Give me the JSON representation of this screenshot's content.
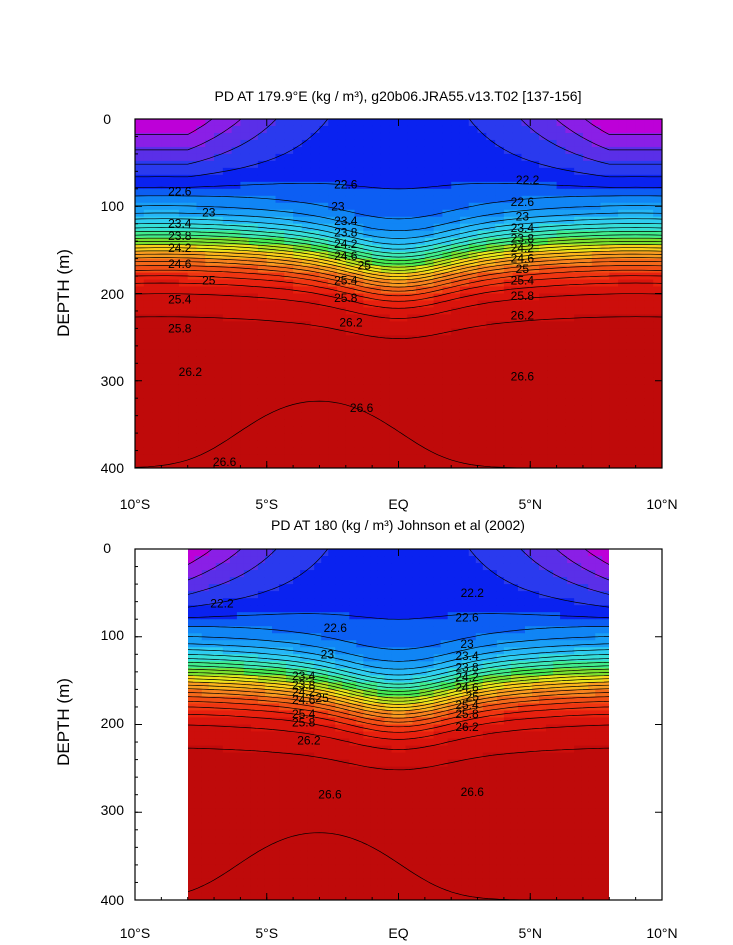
{
  "chart_data": [
    {
      "type": "contour",
      "title": "PD AT 179.9°E (kg / m³), g20b06.JRA55.v13.T02 [137-156]",
      "ylabel": "DEPTH (m)",
      "xlim": [
        -10,
        10
      ],
      "ylim": [
        0,
        400
      ],
      "y_inverted": true,
      "x_ticks": [
        -10,
        -5,
        0,
        5,
        10
      ],
      "x_tick_labels": [
        "10°S",
        "5°S",
        "EQ",
        "5°N",
        "10°N"
      ],
      "y_ticks": [
        0,
        100,
        200,
        300,
        400
      ],
      "y_tick_labels": [
        "0",
        "100",
        "200",
        "300",
        "400"
      ],
      "x_data_range": [
        -10,
        10
      ],
      "contour_levels": [
        21.4,
        21.6,
        21.8,
        22.0,
        22.2,
        22.4,
        22.6,
        22.8,
        23.0,
        23.2,
        23.4,
        23.6,
        23.8,
        24.0,
        24.2,
        24.4,
        24.6,
        24.8,
        25.0,
        25.2,
        25.4,
        25.6,
        25.8,
        26.0,
        26.2,
        26.4,
        26.6,
        26.8
      ],
      "contour_labels": [
        {
          "text": "22.6",
          "x": -8.3,
          "y": 83
        },
        {
          "text": "23",
          "x": -7.2,
          "y": 107
        },
        {
          "text": "23.4",
          "x": -8.3,
          "y": 120
        },
        {
          "text": "23.8",
          "x": -8.3,
          "y": 134
        },
        {
          "text": "24.2",
          "x": -8.3,
          "y": 148
        },
        {
          "text": "24.6",
          "x": -8.3,
          "y": 166
        },
        {
          "text": "25",
          "x": -7.2,
          "y": 185
        },
        {
          "text": "25.4",
          "x": -8.3,
          "y": 207
        },
        {
          "text": "25.8",
          "x": -8.3,
          "y": 240
        },
        {
          "text": "26.2",
          "x": -7.9,
          "y": 290
        },
        {
          "text": "26.6",
          "x": -6.6,
          "y": 393
        },
        {
          "text": "22.6",
          "x": -2.0,
          "y": 75
        },
        {
          "text": "23",
          "x": -2.3,
          "y": 100
        },
        {
          "text": "23.4",
          "x": -2.0,
          "y": 117
        },
        {
          "text": "23.8",
          "x": -2.0,
          "y": 130
        },
        {
          "text": "24.2",
          "x": -2.0,
          "y": 143
        },
        {
          "text": "24.6",
          "x": -2.0,
          "y": 157
        },
        {
          "text": "25",
          "x": -1.3,
          "y": 168
        },
        {
          "text": "25.4",
          "x": -2.0,
          "y": 185
        },
        {
          "text": "25.8",
          "x": -2.0,
          "y": 205
        },
        {
          "text": "26.2",
          "x": -1.8,
          "y": 233
        },
        {
          "text": "26.6",
          "x": -1.4,
          "y": 331
        },
        {
          "text": "22.2",
          "x": 4.9,
          "y": 70
        },
        {
          "text": "22.6",
          "x": 4.7,
          "y": 95
        },
        {
          "text": "23",
          "x": 4.7,
          "y": 112
        },
        {
          "text": "23.4",
          "x": 4.7,
          "y": 125
        },
        {
          "text": "23.8",
          "x": 4.7,
          "y": 137
        },
        {
          "text": "24.2",
          "x": 4.7,
          "y": 148
        },
        {
          "text": "24.6",
          "x": 4.7,
          "y": 160
        },
        {
          "text": "25",
          "x": 4.7,
          "y": 172
        },
        {
          "text": "25.4",
          "x": 4.7,
          "y": 185
        },
        {
          "text": "25.8",
          "x": 4.7,
          "y": 203
        },
        {
          "text": "26.2",
          "x": 4.7,
          "y": 225
        },
        {
          "text": "26.6",
          "x": 4.7,
          "y": 295
        }
      ]
    },
    {
      "type": "contour",
      "title": "PD AT 180 (kg / m³) Johnson et al (2002)",
      "ylabel": "DEPTH (m)",
      "xlim": [
        -10,
        10
      ],
      "ylim": [
        0,
        400
      ],
      "y_inverted": true,
      "x_ticks": [
        -10,
        -5,
        0,
        5,
        10
      ],
      "x_tick_labels": [
        "10°S",
        "5°S",
        "EQ",
        "5°N",
        "10°N"
      ],
      "y_ticks": [
        0,
        100,
        200,
        300,
        400
      ],
      "y_tick_labels": [
        "0",
        "100",
        "200",
        "300",
        "400"
      ],
      "x_data_range": [
        -8,
        8
      ],
      "contour_levels": [
        21.4,
        21.6,
        21.8,
        22.0,
        22.2,
        22.4,
        22.6,
        22.8,
        23.0,
        23.2,
        23.4,
        23.6,
        23.8,
        24.0,
        24.2,
        24.4,
        24.6,
        24.8,
        25.0,
        25.2,
        25.4,
        25.6,
        25.8,
        26.0,
        26.2,
        26.4,
        26.6,
        26.8
      ],
      "contour_labels": [
        {
          "text": "22.2",
          "x": -6.7,
          "y": 62
        },
        {
          "text": "22.6",
          "x": -2.4,
          "y": 90
        },
        {
          "text": "23",
          "x": -2.7,
          "y": 120
        },
        {
          "text": "23.4",
          "x": -3.6,
          "y": 145
        },
        {
          "text": "23.8",
          "x": -3.6,
          "y": 155
        },
        {
          "text": "24.2",
          "x": -3.6,
          "y": 163
        },
        {
          "text": "24.6",
          "x": -3.6,
          "y": 172
        },
        {
          "text": "25",
          "x": -2.9,
          "y": 170
        },
        {
          "text": "25.4",
          "x": -3.6,
          "y": 188
        },
        {
          "text": "25.8",
          "x": -3.6,
          "y": 198
        },
        {
          "text": "26.2",
          "x": -3.4,
          "y": 218
        },
        {
          "text": "26.6",
          "x": -2.6,
          "y": 280
        },
        {
          "text": "22.2",
          "x": 2.8,
          "y": 50
        },
        {
          "text": "22.6",
          "x": 2.6,
          "y": 78
        },
        {
          "text": "23",
          "x": 2.6,
          "y": 108
        },
        {
          "text": "23.4",
          "x": 2.6,
          "y": 122
        },
        {
          "text": "23.8",
          "x": 2.6,
          "y": 135
        },
        {
          "text": "24.2",
          "x": 2.6,
          "y": 146
        },
        {
          "text": "24.6",
          "x": 2.6,
          "y": 158
        },
        {
          "text": "25",
          "x": 2.8,
          "y": 168
        },
        {
          "text": "25.4",
          "x": 2.6,
          "y": 178
        },
        {
          "text": "25.8",
          "x": 2.6,
          "y": 188
        },
        {
          "text": "26.2",
          "x": 2.6,
          "y": 203
        },
        {
          "text": "26.6",
          "x": 2.8,
          "y": 277
        }
      ]
    }
  ],
  "colors": {
    "palette": [
      "#bd00d8",
      "#8a1fe6",
      "#5a2fe8",
      "#2a3aee",
      "#0a22f0",
      "#0c5ef3",
      "#1085f5",
      "#1a9ff6",
      "#25b7f7",
      "#2fcdf0",
      "#36dfd9",
      "#3de8b8",
      "#40ec8c",
      "#44ea54",
      "#7ae02f",
      "#b8e21f",
      "#eae71a",
      "#fbd01a",
      "#fbb61c",
      "#f99b20",
      "#f7821f",
      "#f4681a",
      "#f14e15",
      "#ef3511",
      "#e7200e",
      "#d9140c",
      "#cc0e0b",
      "#bf0a0a"
    ]
  }
}
